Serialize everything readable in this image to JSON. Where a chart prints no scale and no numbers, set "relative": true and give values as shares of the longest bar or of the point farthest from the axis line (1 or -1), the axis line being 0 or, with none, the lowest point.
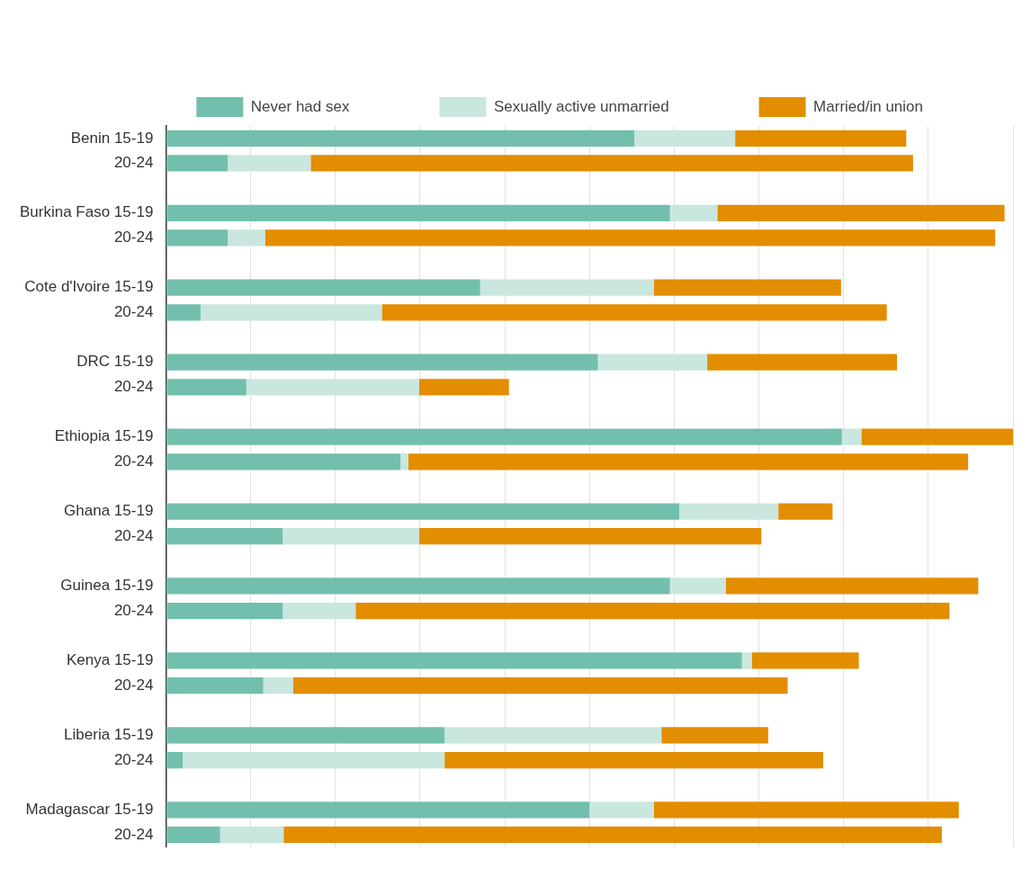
{
  "chart_data": {
    "type": "bar",
    "orientation": "horizontal",
    "stacked": true,
    "relative": true,
    "grid": "x",
    "legend": "top",
    "categories": [
      "Benin 15-19",
      "20-24",
      null,
      "Burkina Faso 15-19",
      "20-24",
      null,
      "Cote d'Ivoire 15-19",
      "20-24",
      null,
      "DRC 15-19",
      "20-24",
      null,
      "Ethiopia 15-19",
      "20-24",
      null,
      "Ghana 15-19",
      "20-24",
      null,
      "Guinea 15-19",
      "20-24",
      null,
      "Kenya 15-19",
      "20-24",
      null,
      "Liberia 15-19",
      "20-24",
      null,
      "Madagascar 15-19",
      "20-24"
    ],
    "series": [
      {
        "name": "Never had sex",
        "color": "#72bfad",
        "values": [
          0.553,
          0.073,
          null,
          0.595,
          0.073,
          null,
          0.371,
          0.041,
          null,
          0.51,
          0.095,
          null,
          0.798,
          0.277,
          null,
          0.606,
          0.138,
          null,
          0.595,
          0.138,
          null,
          0.68,
          0.115,
          null,
          0.329,
          0.02,
          null,
          0.5,
          0.064
        ]
      },
      {
        "name": "Sexually active unmarried",
        "color": "#c9e6df",
        "values": [
          0.119,
          0.098,
          null,
          0.056,
          0.044,
          null,
          0.205,
          0.214,
          null,
          0.129,
          0.204,
          null,
          0.023,
          0.009,
          null,
          0.117,
          0.161,
          null,
          0.066,
          0.086,
          null,
          0.012,
          0.035,
          null,
          0.256,
          0.309,
          null,
          0.076,
          0.075
        ]
      },
      {
        "name": "Married/in union",
        "color": "#e38d00",
        "values": [
          0.202,
          0.711,
          null,
          0.339,
          0.862,
          null,
          0.221,
          0.596,
          null,
          0.224,
          0.106,
          null,
          0.179,
          0.661,
          null,
          0.064,
          0.404,
          null,
          0.298,
          0.701,
          null,
          0.126,
          0.584,
          null,
          0.126,
          0.447,
          null,
          0.36,
          0.777
        ]
      }
    ]
  }
}
